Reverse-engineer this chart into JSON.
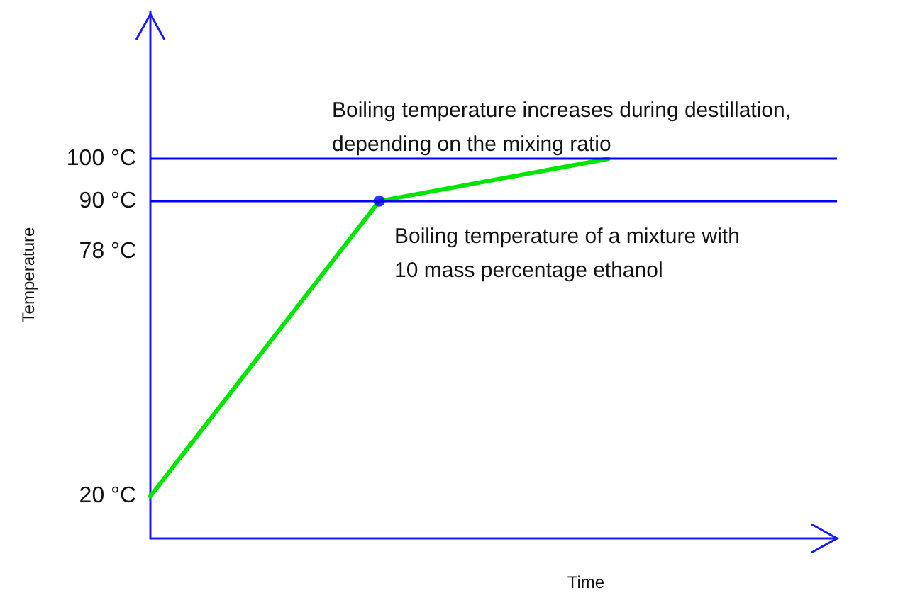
{
  "chart_data": {
    "type": "line",
    "xlabel": "Time",
    "ylabel": "Temperature",
    "categories": [
      null,
      null,
      null,
      null
    ],
    "series": [
      {
        "color": "#00e600",
        "values": [
          20,
          90,
          100,
          null
        ],
        "marker": "none"
      },
      {
        "type": "scatter",
        "color": "#0000ff",
        "values": [
          null,
          90,
          null,
          null
        ],
        "marker": "circle"
      }
    ],
    "ylim": [
      10,
      135
    ],
    "yticks": [
      {
        "value": 20,
        "label": "20 °C"
      },
      {
        "value": 78,
        "label": "78 °C"
      },
      {
        "value": 90,
        "label": "90 °C"
      },
      {
        "value": 100,
        "label": "100 °C"
      }
    ],
    "ref_lines": [
      {
        "axis": "y",
        "value": 100,
        "color": "#0000ff"
      },
      {
        "axis": "y",
        "value": 90,
        "color": "#0000ff"
      }
    ],
    "annotations": [
      "Boiling temperature increases during destillation,\ndepending on the mixing ratio",
      "Boiling temperature of a mixture with\n10 mass percentage ethanol"
    ],
    "grid": false
  }
}
